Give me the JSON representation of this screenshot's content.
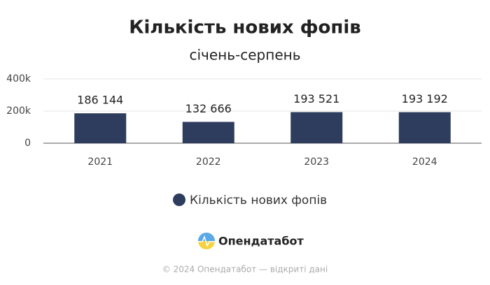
{
  "chart_data": {
    "type": "bar",
    "title": "Кількість нових фопів",
    "subtitle": "січень-серпень",
    "categories": [
      "2021",
      "2022",
      "2023",
      "2024"
    ],
    "series": [
      {
        "name": "Кількість нових фопів",
        "color": "#2e3c5e",
        "values": [
          186144,
          132666,
          193521,
          193192
        ],
        "value_labels": [
          "186 144",
          "132 666",
          "193 521",
          "193 192"
        ]
      }
    ],
    "ylim": [
      0,
      400000
    ],
    "yticks": [
      0,
      {
        "value": 200000,
        "label": "200k"
      },
      {
        "value": 400000,
        "label": "400k"
      }
    ],
    "grid": true,
    "legend": "bottom"
  },
  "logo_text": "Опендатабот",
  "footer": "© 2024 Опендатабот — відкриті дані"
}
